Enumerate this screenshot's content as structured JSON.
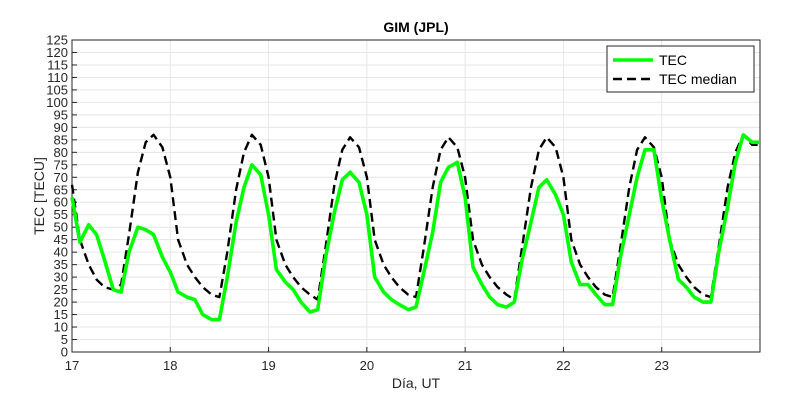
{
  "chart_data": {
    "type": "line",
    "title": "GIM (JPL)",
    "xlabel": "Día, UT",
    "ylabel": "TEC [TECU]",
    "xlim": [
      17,
      24
    ],
    "ylim": [
      0,
      125
    ],
    "x_ticks": [
      17,
      18,
      19,
      20,
      21,
      22,
      23
    ],
    "x_tick_labels": [
      "17",
      "18",
      "19",
      "20",
      "21",
      "22",
      "23"
    ],
    "y_ticks": [
      0,
      5,
      10,
      15,
      20,
      25,
      30,
      35,
      40,
      45,
      50,
      55,
      60,
      65,
      70,
      75,
      80,
      85,
      90,
      95,
      100,
      105,
      110,
      115,
      120,
      125
    ],
    "y_tick_labels": [
      "0",
      "5",
      "10",
      "15",
      "20",
      "25",
      "30",
      "35",
      "40",
      "45",
      "50",
      "55",
      "60",
      "65",
      "70",
      "75",
      "80",
      "85",
      "90",
      "95",
      "100",
      "105",
      "110",
      "115",
      "120",
      "125"
    ],
    "grid": true,
    "legend_position": "top-right",
    "series": [
      {
        "name": "TEC",
        "color": "#00ff00",
        "style": "solid",
        "x": [
          17.0,
          17.08,
          17.17,
          17.25,
          17.33,
          17.42,
          17.5,
          17.58,
          17.67,
          17.75,
          17.83,
          17.92,
          18.0,
          18.08,
          18.17,
          18.25,
          18.33,
          18.42,
          18.5,
          18.58,
          18.67,
          18.75,
          18.83,
          18.92,
          19.0,
          19.08,
          19.17,
          19.25,
          19.33,
          19.42,
          19.5,
          19.58,
          19.67,
          19.75,
          19.83,
          19.92,
          20.0,
          20.08,
          20.17,
          20.25,
          20.33,
          20.42,
          20.5,
          20.58,
          20.67,
          20.75,
          20.83,
          20.92,
          21.0,
          21.08,
          21.17,
          21.25,
          21.33,
          21.42,
          21.5,
          21.58,
          21.67,
          21.75,
          21.83,
          21.92,
          22.0,
          22.08,
          22.17,
          22.25,
          22.33,
          22.42,
          22.5,
          22.58,
          22.67,
          22.75,
          22.83,
          22.92,
          23.0,
          23.08,
          23.17,
          23.25,
          23.33,
          23.42,
          23.5,
          23.58,
          23.67,
          23.75,
          23.83,
          23.92,
          24.0
        ],
        "y": [
          62,
          44,
          51,
          47,
          37,
          25,
          24,
          40,
          50,
          49,
          47,
          38,
          32,
          24,
          22,
          21,
          15,
          13,
          13,
          30,
          52,
          66,
          75,
          71,
          55,
          33,
          28,
          25,
          20,
          16,
          17,
          38,
          56,
          69,
          72,
          68,
          55,
          30,
          24,
          21,
          19,
          17,
          18,
          32,
          48,
          68,
          74,
          76,
          62,
          34,
          27,
          22,
          19,
          18,
          20,
          37,
          52,
          66,
          69,
          63,
          55,
          36,
          27,
          27,
          23,
          19,
          19,
          38,
          55,
          70,
          81,
          81,
          61,
          45,
          29,
          26,
          22,
          20,
          20,
          40,
          58,
          76,
          87,
          84,
          84
        ]
      },
      {
        "name": "TEC median",
        "color": "#000000",
        "style": "dashed",
        "x": [
          17.0,
          17.08,
          17.17,
          17.25,
          17.33,
          17.42,
          17.5,
          17.58,
          17.67,
          17.75,
          17.83,
          17.92,
          18.0,
          18.08,
          18.17,
          18.25,
          18.33,
          18.42,
          18.5,
          18.58,
          18.67,
          18.75,
          18.83,
          18.92,
          19.0,
          19.08,
          19.17,
          19.25,
          19.33,
          19.42,
          19.5,
          19.58,
          19.67,
          19.75,
          19.83,
          19.92,
          20.0,
          20.08,
          20.17,
          20.25,
          20.33,
          20.42,
          20.5,
          20.58,
          20.67,
          20.75,
          20.83,
          20.92,
          21.0,
          21.08,
          21.17,
          21.25,
          21.33,
          21.42,
          21.5,
          21.58,
          21.67,
          21.75,
          21.83,
          21.92,
          22.0,
          22.08,
          22.17,
          22.25,
          22.33,
          22.42,
          22.5,
          22.58,
          22.67,
          22.75,
          22.83,
          22.92,
          23.0,
          23.08,
          23.17,
          23.25,
          23.33,
          23.42,
          23.5,
          23.58,
          23.67,
          23.75,
          23.83,
          23.92,
          24.0
        ],
        "y": [
          67,
          45,
          35,
          29,
          26,
          25,
          27,
          47,
          72,
          84,
          87,
          82,
          70,
          45,
          35,
          30,
          26,
          23,
          22,
          40,
          65,
          80,
          87,
          83,
          70,
          45,
          35,
          30,
          26,
          23,
          21,
          42,
          67,
          81,
          86,
          82,
          70,
          45,
          35,
          30,
          26,
          23,
          22,
          42,
          66,
          81,
          86,
          82,
          70,
          45,
          35,
          30,
          26,
          23,
          21,
          42,
          66,
          81,
          86,
          82,
          70,
          45,
          35,
          30,
          26,
          23,
          22,
          42,
          66,
          81,
          86,
          82,
          70,
          45,
          35,
          30,
          26,
          23,
          22,
          42,
          66,
          80,
          87,
          83,
          83
        ]
      }
    ]
  }
}
